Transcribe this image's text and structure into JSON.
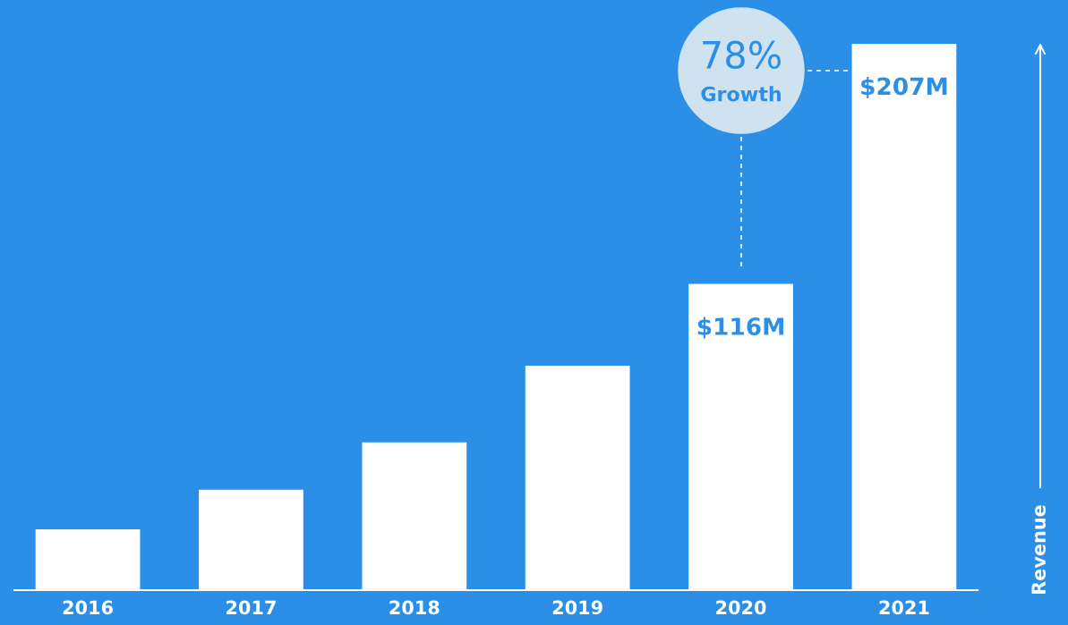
{
  "chart_data": {
    "type": "bar",
    "categories": [
      "2016",
      "2017",
      "2018",
      "2019",
      "2020",
      "2021"
    ],
    "values": [
      23,
      38,
      56,
      85,
      116,
      207
    ],
    "value_labels": [
      null,
      null,
      null,
      null,
      "$116M",
      "$207M"
    ],
    "color": "#ffffff",
    "ylabel": "Revenue",
    "annotations": [
      "78%\nGrowth"
    ],
    "grid": false,
    "legend": false,
    "tick_labels": "x"
  }
}
